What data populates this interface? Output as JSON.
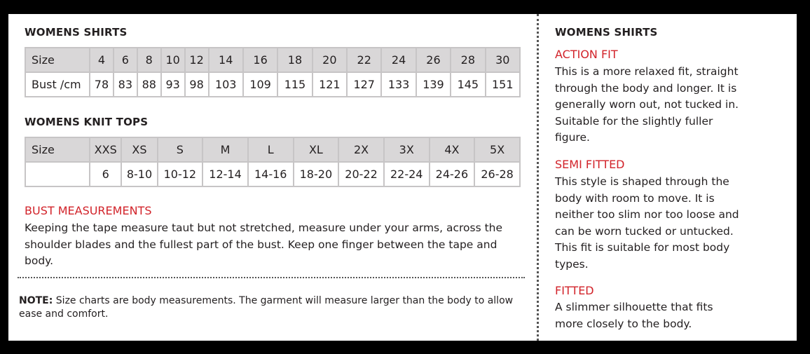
{
  "shirts": {
    "title": "WOMENS SHIRTS",
    "rows": [
      [
        "Size",
        "4",
        "6",
        "8",
        "10",
        "12",
        "14",
        "16",
        "18",
        "20",
        "22",
        "24",
        "26",
        "28",
        "30"
      ],
      [
        "Bust /cm",
        "78",
        "83",
        "88",
        "93",
        "98",
        "103",
        "109",
        "115",
        "121",
        "127",
        "133",
        "139",
        "145",
        "151"
      ]
    ]
  },
  "knit": {
    "title": "WOMENS KNIT TOPS",
    "rows": [
      [
        "Size",
        "XXS",
        "XS",
        "S",
        "M",
        "L",
        "XL",
        "2X",
        "3X",
        "4X",
        "5X"
      ],
      [
        "",
        "6",
        "8-10",
        "10-12",
        "12-14",
        "14-16",
        "18-20",
        "20-22",
        "22-24",
        "24-26",
        "26-28"
      ]
    ]
  },
  "bust": {
    "title": "BUST MEASUREMENTS",
    "text": "Keeping the tape measure taut but not stretched, measure under your arms, across the shoulder blades and the fullest part of the bust. Keep one finger between the tape and body."
  },
  "note": {
    "label": "NOTE:",
    "text": " Size charts are body measurements. The garment will measure larger than the body to allow ease and comfort."
  },
  "right": {
    "title": "WOMENS SHIRTS",
    "fits": [
      {
        "name": "ACTION FIT",
        "text": "This is a more relaxed fit, straight through the body and longer. It is generally worn out, not tucked in. Suitable for the slightly fuller figure."
      },
      {
        "name": "SEMI FITTED",
        "text": "This style is shaped through the body with room to move. It is neither too slim nor too loose and can be worn tucked or untucked. This fit is suitable for most body types."
      },
      {
        "name": "FITTED",
        "text": "A slimmer silhouette that fits more closely to the body."
      }
    ]
  },
  "colors": {
    "accent": "#d2232a",
    "header_cell": "#d9d7d8"
  }
}
